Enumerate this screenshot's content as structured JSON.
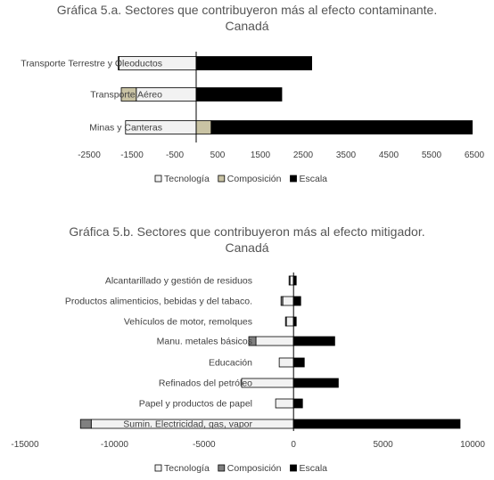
{
  "chart_data": [
    {
      "type": "bar",
      "orientation": "horizontal",
      "stacked": true,
      "title_line1": "Gráfica 5.a. Sectores que contribuyeron más al efecto contaminante.",
      "title_line2": "Canadá",
      "categories": [
        "Transporte Terrestre y  Oleoductos",
        "Transporte Aéreo",
        "Minas y Canteras"
      ],
      "series": [
        {
          "name": "Tecnología",
          "values": [
            -1800,
            -1400,
            -1650
          ],
          "color": "#f2f2f2"
        },
        {
          "name": "Composición",
          "values": [
            -20,
            -350,
            350
          ],
          "color": "#c9c3a4"
        },
        {
          "name": "Escala",
          "values": [
            2700,
            2000,
            6100
          ],
          "color": "#000000"
        }
      ],
      "xticks": [
        "-2500",
        "-1500",
        "-500",
        "500",
        "1500",
        "2500",
        "3500",
        "4500",
        "5500",
        "6500"
      ],
      "xlim": [
        -2500,
        6500
      ],
      "legend": "bottom",
      "grid": false
    },
    {
      "type": "bar",
      "orientation": "horizontal",
      "stacked": true,
      "title_line1": "Gráfica 5.b. Sectores que contribuyeron más al efecto mitigador.",
      "title_line2": "Canadá",
      "categories": [
        "Alcantarillado y gestión de residuos",
        "Productos alimenticios, bebidas y  del tabaco.",
        "Vehículos de motor, remolques",
        "Manu. metales básicos",
        "Educación",
        "Refinados del petróleo",
        "Papel y productos de papel",
        "Sumin. Electricidad, gas, vapor"
      ],
      "series": [
        {
          "name": "Tecnología",
          "values": [
            -200,
            -600,
            -400,
            -2100,
            -800,
            -2900,
            -1000,
            -11300
          ],
          "color": "#f2f2f2"
        },
        {
          "name": "Composición",
          "values": [
            -50,
            -100,
            -50,
            -400,
            0,
            0,
            0,
            -600
          ],
          "color": "#808080"
        },
        {
          "name": "Escala",
          "values": [
            150,
            400,
            150,
            2300,
            600,
            2500,
            500,
            9300
          ],
          "color": "#000000"
        }
      ],
      "xticks": [
        "-15000",
        "-10000",
        "-5000",
        "0",
        "5000",
        "10000"
      ],
      "xlim": [
        -15000,
        10000
      ],
      "legend": "bottom",
      "grid": false
    }
  ]
}
